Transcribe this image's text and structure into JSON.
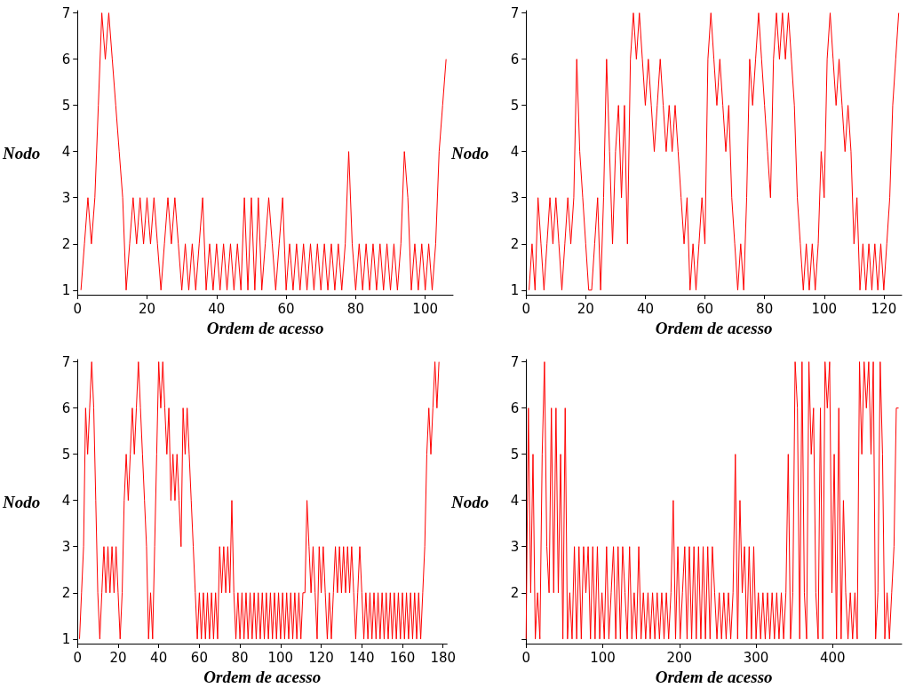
{
  "chart_data": [
    {
      "type": "line",
      "xlabel": "Ordem de acesso",
      "ylabel": "Nodo",
      "xlim": [
        0,
        108
      ],
      "xticks": [
        0,
        20,
        40,
        60,
        80,
        100
      ],
      "ylim": [
        0.9,
        7.05
      ],
      "yticks": [
        1,
        2,
        3,
        4,
        5,
        6,
        7
      ],
      "marker": "none",
      "line_style": "solid",
      "series": [
        {
          "color": "#ff0000",
          "x": [
            1,
            2,
            3,
            4,
            5,
            6,
            7,
            8,
            9,
            10,
            11,
            12,
            13,
            14,
            15,
            16,
            17,
            18,
            19,
            20,
            21,
            22,
            23,
            24,
            25,
            26,
            27,
            28,
            29,
            30,
            31,
            32,
            33,
            34,
            35,
            36,
            37,
            38,
            39,
            40,
            41,
            42,
            43,
            44,
            45,
            46,
            47,
            48,
            49,
            50,
            51,
            52,
            53,
            54,
            55,
            56,
            57,
            58,
            59,
            60,
            61,
            62,
            63,
            64,
            65,
            66,
            67,
            68,
            69,
            70,
            71,
            72,
            73,
            74,
            75,
            76,
            77,
            78,
            79,
            80,
            81,
            82,
            83,
            84,
            85,
            86,
            87,
            88,
            89,
            90,
            91,
            92,
            93,
            94,
            95,
            96,
            97,
            98,
            99,
            100,
            101,
            102,
            103,
            104,
            105,
            106
          ],
          "values": [
            1,
            2,
            3,
            2,
            3,
            5,
            7,
            6,
            7,
            6,
            5,
            4,
            3,
            1,
            2,
            3,
            2,
            3,
            2,
            3,
            2,
            3,
            2,
            1,
            2,
            3,
            2,
            3,
            2,
            1,
            2,
            1,
            2,
            1,
            2,
            3,
            1,
            2,
            1,
            2,
            1,
            2,
            1,
            2,
            1,
            2,
            1,
            3,
            1,
            3,
            1,
            3,
            1,
            2,
            3,
            2,
            1,
            2,
            3,
            1,
            2,
            1,
            2,
            1,
            2,
            1,
            2,
            1,
            2,
            1,
            2,
            1,
            2,
            1,
            2,
            1,
            2,
            4,
            2,
            1,
            2,
            1,
            2,
            1,
            2,
            1,
            2,
            1,
            2,
            1,
            2,
            1,
            2,
            4,
            3,
            1,
            2,
            1,
            2,
            1,
            2,
            1,
            2,
            4,
            5,
            6
          ]
        }
      ]
    },
    {
      "type": "line",
      "xlabel": "Ordem de acesso",
      "ylabel": "Nodo",
      "xlim": [
        0,
        126
      ],
      "xticks": [
        0,
        20,
        40,
        60,
        80,
        100,
        120
      ],
      "ylim": [
        0.9,
        7.05
      ],
      "yticks": [
        1,
        2,
        3,
        4,
        5,
        6,
        7
      ],
      "marker": "none",
      "line_style": "solid",
      "series": [
        {
          "color": "#ff0000",
          "x": [
            1,
            2,
            3,
            4,
            5,
            6,
            7,
            8,
            9,
            10,
            11,
            12,
            13,
            14,
            15,
            16,
            17,
            18,
            19,
            20,
            21,
            22,
            23,
            24,
            25,
            26,
            27,
            28,
            29,
            30,
            31,
            32,
            33,
            34,
            35,
            36,
            37,
            38,
            39,
            40,
            41,
            42,
            43,
            44,
            45,
            46,
            47,
            48,
            49,
            50,
            51,
            52,
            53,
            54,
            55,
            56,
            57,
            58,
            59,
            60,
            61,
            62,
            63,
            64,
            65,
            66,
            67,
            68,
            69,
            70,
            71,
            72,
            73,
            74,
            75,
            76,
            77,
            78,
            79,
            80,
            81,
            82,
            83,
            84,
            85,
            86,
            87,
            88,
            89,
            90,
            91,
            92,
            93,
            94,
            95,
            96,
            97,
            98,
            99,
            100,
            101,
            102,
            103,
            104,
            105,
            106,
            107,
            108,
            109,
            110,
            111,
            112,
            113,
            114,
            115,
            116,
            117,
            118,
            119,
            120,
            121,
            122,
            123,
            124,
            125
          ],
          "values": [
            1,
            2,
            1,
            3,
            2,
            1,
            2,
            3,
            2,
            3,
            2,
            1,
            2,
            3,
            2,
            3,
            6,
            4,
            3,
            2,
            1,
            1,
            2,
            3,
            1,
            3,
            6,
            4,
            2,
            4,
            5,
            3,
            5,
            2,
            6,
            7,
            6,
            7,
            6,
            5,
            6,
            5,
            4,
            5,
            6,
            5,
            4,
            5,
            4,
            5,
            4,
            3,
            2,
            3,
            1,
            2,
            1,
            2,
            3,
            2,
            6,
            7,
            6,
            5,
            6,
            5,
            4,
            5,
            3,
            2,
            1,
            2,
            1,
            3,
            6,
            5,
            6,
            7,
            6,
            5,
            4,
            3,
            6,
            7,
            6,
            7,
            6,
            7,
            6,
            5,
            3,
            2,
            1,
            2,
            1,
            2,
            1,
            2,
            4,
            3,
            6,
            7,
            6,
            5,
            6,
            5,
            4,
            5,
            4,
            2,
            3,
            1,
            2,
            1,
            2,
            1,
            2,
            1,
            2,
            1,
            2,
            3,
            5,
            6,
            7
          ]
        }
      ]
    },
    {
      "type": "line",
      "xlabel": "Ordem de acesso",
      "ylabel": "Nodo",
      "xlim": [
        0,
        182
      ],
      "xticks": [
        0,
        20,
        40,
        60,
        80,
        100,
        120,
        140,
        160,
        180
      ],
      "ylim": [
        0.9,
        7.05
      ],
      "yticks": [
        1,
        2,
        3,
        4,
        5,
        6,
        7
      ],
      "marker": "none",
      "line_style": "solid",
      "series": [
        {
          "color": "#ff0000",
          "x": [
            1,
            2,
            3,
            4,
            5,
            6,
            7,
            8,
            9,
            10,
            11,
            12,
            13,
            14,
            15,
            16,
            17,
            18,
            19,
            20,
            21,
            22,
            23,
            24,
            25,
            26,
            27,
            28,
            29,
            30,
            31,
            32,
            33,
            34,
            35,
            36,
            37,
            38,
            39,
            40,
            41,
            42,
            43,
            44,
            45,
            46,
            47,
            48,
            49,
            50,
            51,
            52,
            53,
            54,
            55,
            56,
            57,
            58,
            59,
            60,
            61,
            62,
            63,
            64,
            65,
            66,
            67,
            68,
            69,
            70,
            71,
            72,
            73,
            74,
            75,
            76,
            77,
            78,
            79,
            80,
            81,
            82,
            83,
            84,
            85,
            86,
            87,
            88,
            89,
            90,
            91,
            92,
            93,
            94,
            95,
            96,
            97,
            98,
            99,
            100,
            101,
            102,
            103,
            104,
            105,
            106,
            107,
            108,
            109,
            110,
            111,
            112,
            113,
            114,
            115,
            116,
            117,
            118,
            119,
            120,
            121,
            122,
            123,
            124,
            125,
            126,
            127,
            128,
            129,
            130,
            131,
            132,
            133,
            134,
            135,
            136,
            137,
            138,
            139,
            140,
            141,
            142,
            143,
            144,
            145,
            146,
            147,
            148,
            149,
            150,
            151,
            152,
            153,
            154,
            155,
            156,
            157,
            158,
            159,
            160,
            161,
            162,
            163,
            164,
            165,
            166,
            167,
            168,
            169,
            170,
            171,
            172,
            173,
            174,
            175,
            176,
            177,
            178
          ],
          "values": [
            1,
            2,
            3,
            6,
            5,
            6,
            7,
            6,
            4,
            2,
            1,
            2,
            3,
            2,
            3,
            2,
            3,
            2,
            3,
            2,
            1,
            2,
            4,
            5,
            4,
            5,
            6,
            5,
            6,
            7,
            6,
            5,
            4,
            3,
            1,
            2,
            1,
            3,
            5,
            7,
            6,
            7,
            6,
            5,
            6,
            4,
            5,
            4,
            5,
            4,
            3,
            6,
            5,
            6,
            5,
            4,
            3,
            2,
            1,
            2,
            1,
            2,
            1,
            2,
            1,
            2,
            1,
            2,
            1,
            3,
            2,
            3,
            2,
            3,
            2,
            4,
            2,
            1,
            2,
            1,
            2,
            1,
            2,
            1,
            2,
            1,
            2,
            1,
            2,
            1,
            2,
            1,
            2,
            1,
            2,
            1,
            2,
            1,
            2,
            1,
            2,
            1,
            2,
            1,
            2,
            1,
            2,
            1,
            2,
            1,
            2,
            2,
            4,
            3,
            2,
            3,
            2,
            1,
            3,
            2,
            3,
            2,
            1,
            2,
            1,
            2,
            3,
            2,
            3,
            2,
            3,
            2,
            3,
            2,
            3,
            2,
            1,
            2,
            3,
            2,
            1,
            2,
            1,
            2,
            1,
            2,
            1,
            2,
            1,
            2,
            1,
            2,
            1,
            2,
            1,
            2,
            1,
            2,
            1,
            2,
            1,
            2,
            1,
            2,
            1,
            2,
            1,
            2,
            1,
            2,
            3,
            5,
            6,
            5,
            6,
            7,
            6,
            7
          ]
        }
      ]
    },
    {
      "type": "line",
      "xlabel": "Ordem de acesso",
      "ylabel": "Nodo",
      "xlim": [
        0,
        490
      ],
      "xticks": [
        0,
        100,
        200,
        300,
        400
      ],
      "ylim": [
        0.9,
        7.05
      ],
      "yticks": [
        {
          "value": 1,
          "label": null
        },
        2,
        3,
        4,
        5,
        6,
        7
      ],
      "marker": "none",
      "line_style": "solid",
      "series": [
        {
          "color": "#ff0000",
          "x": [
            0,
            3,
            6,
            9,
            12,
            15,
            18,
            21,
            24,
            27,
            30,
            33,
            36,
            39,
            42,
            45,
            48,
            51,
            54,
            57,
            60,
            63,
            66,
            69,
            72,
            75,
            78,
            81,
            84,
            87,
            90,
            93,
            96,
            99,
            102,
            105,
            108,
            111,
            114,
            117,
            120,
            123,
            126,
            129,
            132,
            135,
            138,
            141,
            144,
            147,
            150,
            153,
            156,
            159,
            162,
            165,
            168,
            171,
            174,
            177,
            180,
            183,
            186,
            189,
            192,
            195,
            198,
            201,
            204,
            207,
            210,
            213,
            216,
            219,
            222,
            225,
            228,
            231,
            234,
            237,
            240,
            243,
            246,
            249,
            252,
            255,
            258,
            261,
            264,
            267,
            270,
            273,
            276,
            279,
            282,
            285,
            288,
            291,
            294,
            297,
            300,
            303,
            306,
            309,
            312,
            315,
            318,
            321,
            324,
            327,
            330,
            333,
            336,
            339,
            342,
            345,
            348,
            351,
            354,
            357,
            360,
            363,
            366,
            369,
            372,
            375,
            378,
            381,
            384,
            387,
            390,
            393,
            396,
            399,
            402,
            405,
            408,
            411,
            414,
            417,
            420,
            423,
            426,
            429,
            432,
            435,
            438,
            441,
            444,
            447,
            450,
            453,
            456,
            459,
            462,
            465,
            468,
            471,
            474,
            477,
            480,
            483,
            486
          ],
          "values": [
            1,
            6,
            2,
            5,
            1,
            2,
            1,
            5,
            7,
            3,
            2,
            6,
            2,
            6,
            2,
            5,
            1,
            6,
            1,
            2,
            1,
            3,
            1,
            3,
            1,
            3,
            2,
            3,
            1,
            3,
            1,
            3,
            1,
            2,
            1,
            3,
            1,
            2,
            3,
            1,
            3,
            1,
            3,
            2,
            1,
            3,
            1,
            2,
            1,
            3,
            1,
            2,
            1,
            2,
            1,
            2,
            1,
            2,
            1,
            2,
            1,
            2,
            1,
            2,
            4,
            1,
            3,
            1,
            2,
            3,
            1,
            3,
            1,
            3,
            1,
            3,
            1,
            3,
            1,
            3,
            1,
            3,
            2,
            1,
            2,
            1,
            2,
            1,
            2,
            1,
            2,
            5,
            1,
            4,
            2,
            3,
            1,
            3,
            1,
            3,
            1,
            2,
            1,
            2,
            1,
            2,
            1,
            2,
            1,
            2,
            1,
            2,
            1,
            2,
            5,
            1,
            2,
            7,
            6,
            1,
            7,
            2,
            1,
            7,
            5,
            6,
            2,
            1,
            6,
            1,
            7,
            6,
            7,
            2,
            5,
            1,
            6,
            1,
            4,
            2,
            1,
            2,
            1,
            2,
            1,
            7,
            5,
            7,
            6,
            7,
            5,
            7,
            1,
            2,
            7,
            5,
            1,
            2,
            1,
            2,
            3,
            6,
            6
          ]
        }
      ]
    }
  ]
}
